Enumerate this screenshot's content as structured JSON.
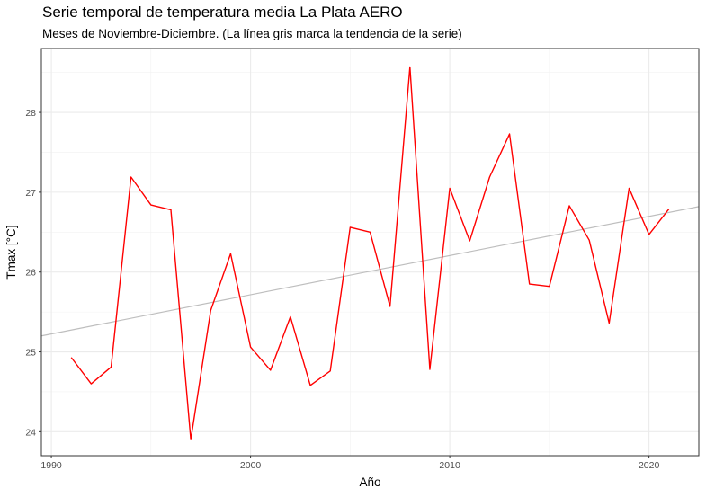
{
  "chart_data": {
    "type": "line",
    "title": "Serie temporal de temperatura media La Plata AERO",
    "subtitle": "Meses de Noviembre-Diciembre. (La línea gris marca la tendencia de la serie)",
    "xlabel": "Año",
    "ylabel": "Tmax [°C]",
    "xlim": [
      1989.5,
      2022.5
    ],
    "ylim": [
      23.7,
      28.8
    ],
    "x_ticks": [
      1990,
      2000,
      2010,
      2020
    ],
    "y_ticks": [
      24,
      25,
      26,
      27,
      28
    ],
    "grid": true,
    "series": [
      {
        "color": "#ff0000",
        "x": [
          1991,
          1992,
          1993,
          1994,
          1995,
          1996,
          1997,
          1998,
          1999,
          2000,
          2001,
          2002,
          2003,
          2004,
          2005,
          2006,
          2007,
          2008,
          2009,
          2010,
          2011,
          2012,
          2013,
          2014,
          2015,
          2016,
          2017,
          2018,
          2019,
          2020,
          2021
        ],
        "y": [
          24.93,
          24.6,
          24.81,
          27.19,
          26.84,
          26.78,
          23.9,
          25.52,
          26.23,
          25.06,
          24.77,
          25.44,
          24.58,
          24.76,
          26.56,
          26.5,
          25.57,
          28.57,
          24.78,
          27.05,
          26.39,
          27.19,
          27.73,
          25.85,
          25.82,
          26.83,
          26.4,
          25.36,
          27.05,
          26.47,
          26.79
        ]
      }
    ],
    "trend_line": {
      "color": "#bebebe",
      "x": [
        1989.5,
        2022.5
      ],
      "y": [
        25.2,
        26.82
      ]
    }
  }
}
